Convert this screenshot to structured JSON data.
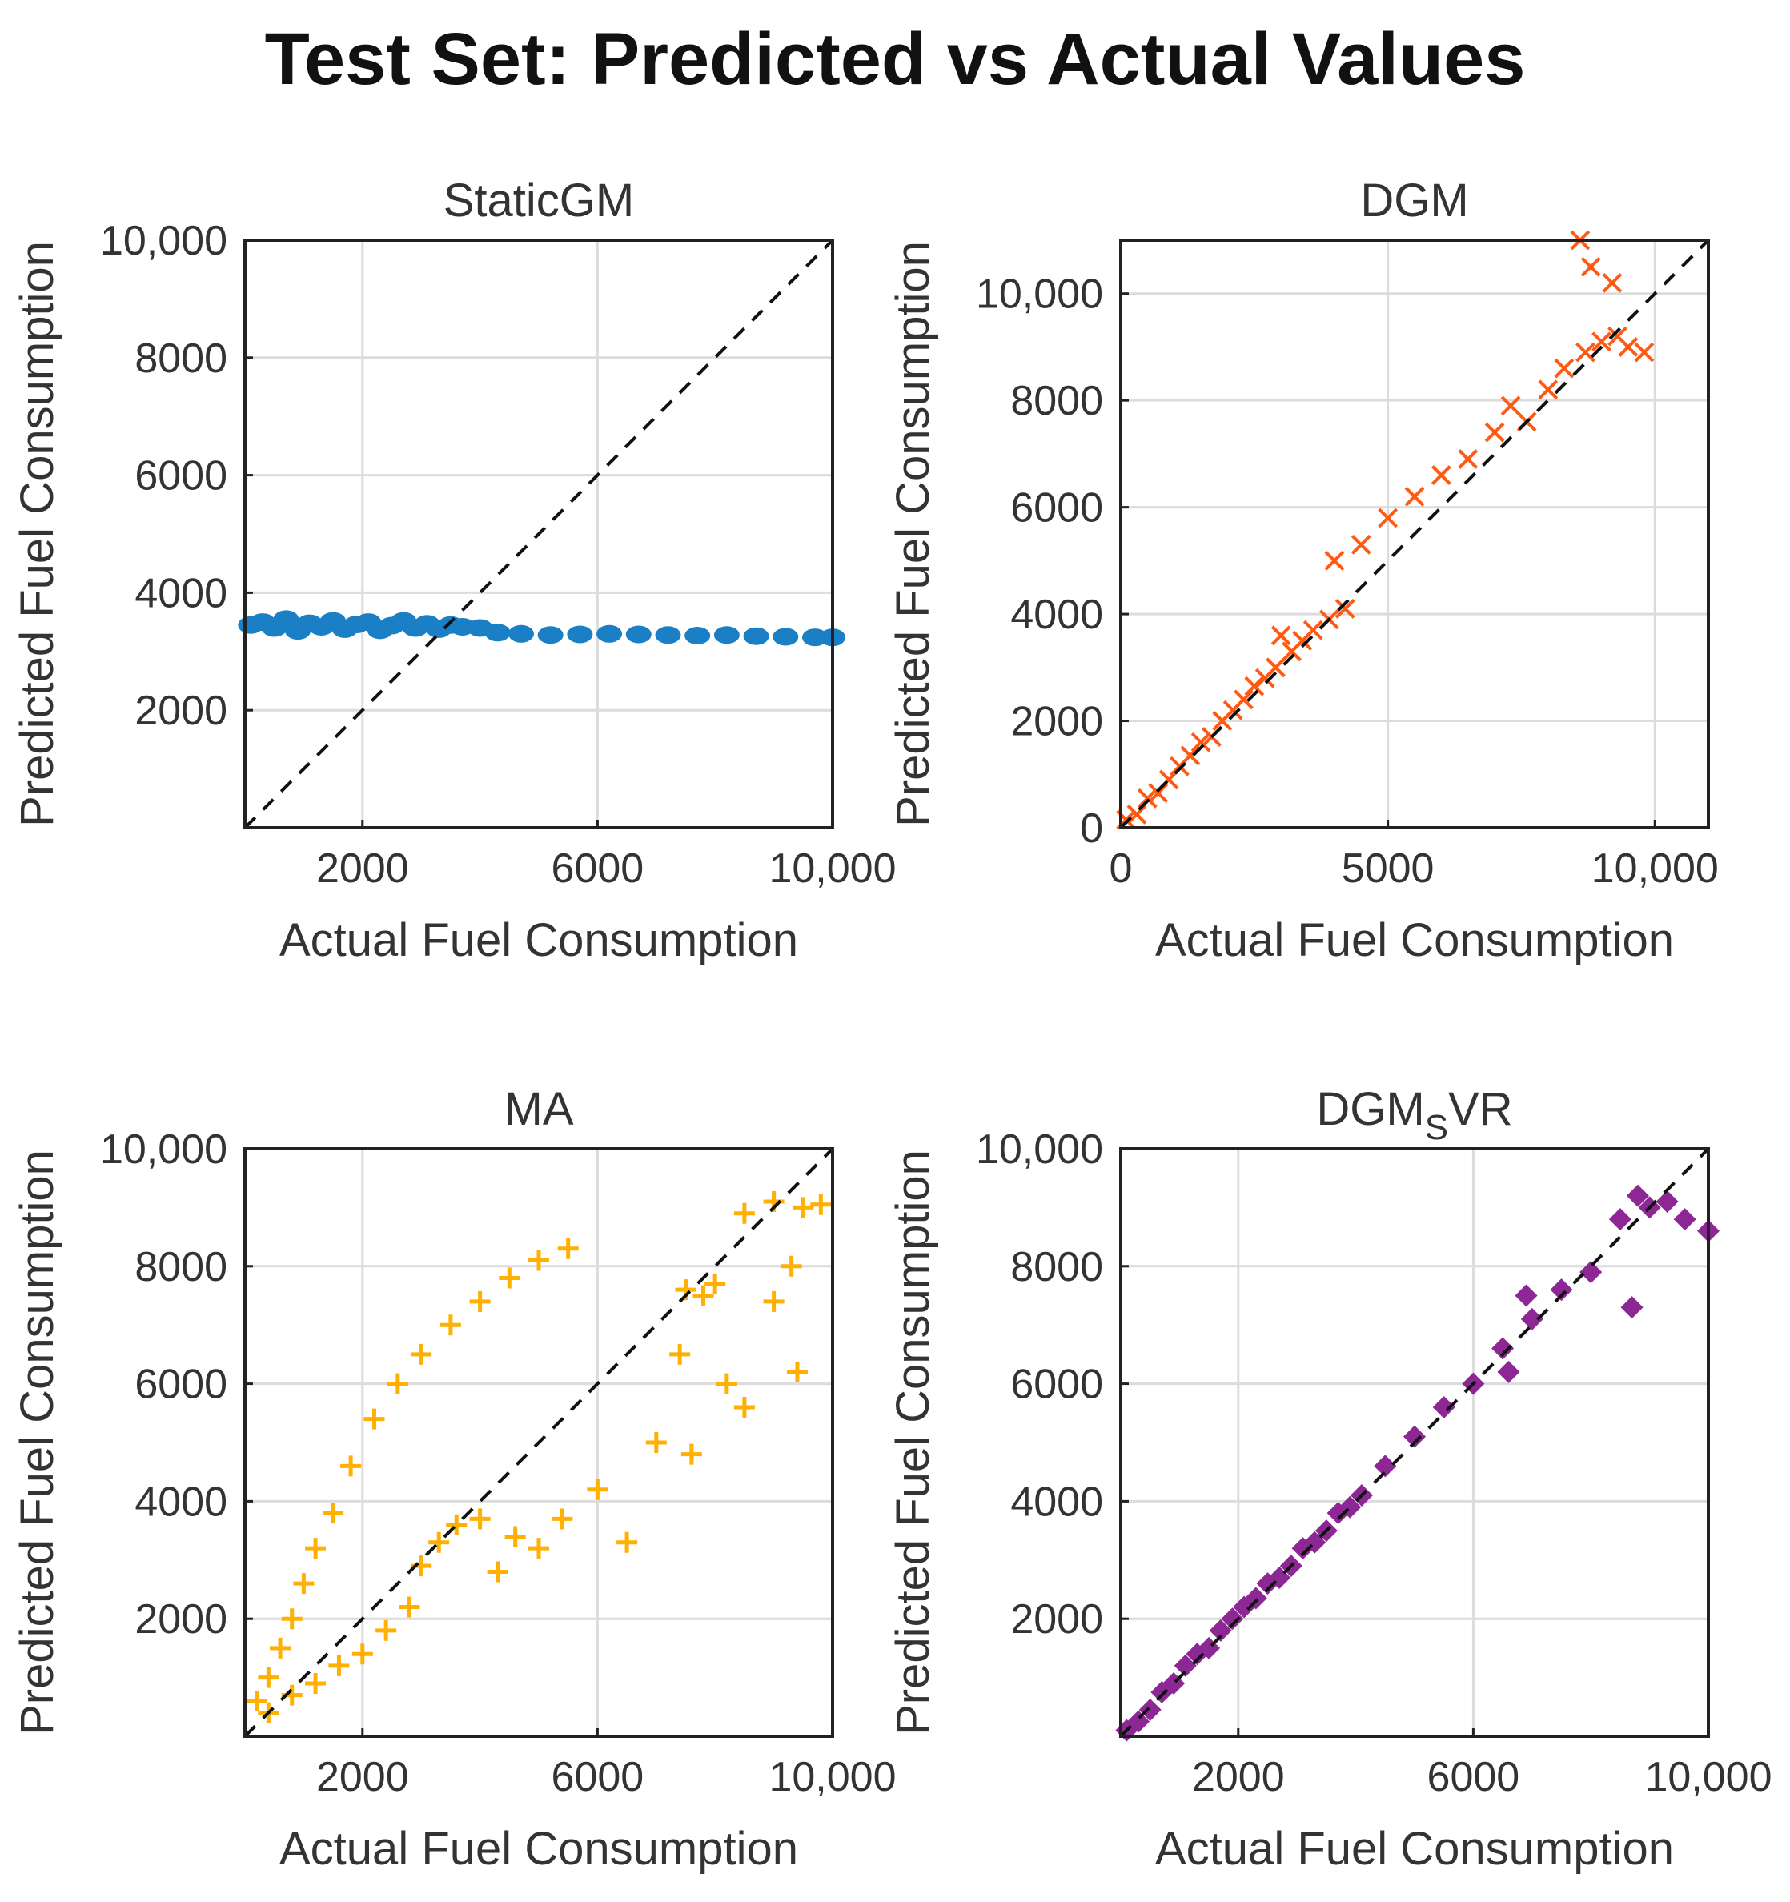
{
  "title": "Test Set: Predicted vs Actual Values",
  "colors": {
    "staticgm": "#1a7fc4",
    "dgm": "#ff5a14",
    "ma": "#ffb000",
    "dgmsvr": "#8e2796"
  },
  "chart_data": [
    {
      "type": "scatter",
      "title": "StaticGM",
      "xlabel": "Actual Fuel Consumption",
      "ylabel": "Predicted Fuel Consumption",
      "xlim": [
        0,
        10000
      ],
      "ylim": [
        0,
        10000
      ],
      "xticks": [
        2000,
        6000,
        10000
      ],
      "xtick_labels": [
        "2000",
        "6000",
        "10,000"
      ],
      "yticks": [
        2000,
        4000,
        6000,
        8000,
        10000
      ],
      "ytick_labels": [
        "2000",
        "4000",
        "6000",
        "8000",
        "10,000"
      ],
      "grid": true,
      "marker": "dot",
      "color_key": "staticgm",
      "reference_line": "y=x",
      "series": [
        {
          "points": [
            [
              100,
              3450
            ],
            [
              300,
              3500
            ],
            [
              500,
              3400
            ],
            [
              700,
              3550
            ],
            [
              900,
              3350
            ],
            [
              1100,
              3480
            ],
            [
              1300,
              3420
            ],
            [
              1500,
              3520
            ],
            [
              1700,
              3380
            ],
            [
              1900,
              3460
            ],
            [
              2100,
              3500
            ],
            [
              2300,
              3360
            ],
            [
              2500,
              3440
            ],
            [
              2700,
              3520
            ],
            [
              2900,
              3400
            ],
            [
              3100,
              3470
            ],
            [
              3300,
              3380
            ],
            [
              3500,
              3450
            ],
            [
              3700,
              3420
            ],
            [
              4000,
              3400
            ],
            [
              4300,
              3320
            ],
            [
              4700,
              3300
            ],
            [
              5200,
              3280
            ],
            [
              5700,
              3290
            ],
            [
              6200,
              3300
            ],
            [
              6700,
              3290
            ],
            [
              7200,
              3280
            ],
            [
              7700,
              3270
            ],
            [
              8200,
              3280
            ],
            [
              8700,
              3260
            ],
            [
              9200,
              3250
            ],
            [
              9700,
              3240
            ],
            [
              10000,
              3240
            ]
          ]
        }
      ]
    },
    {
      "type": "scatter",
      "title": "DGM",
      "xlabel": "Actual Fuel Consumption",
      "ylabel": "Predicted Fuel Consumption",
      "xlim": [
        0,
        11000
      ],
      "ylim": [
        0,
        11000
      ],
      "xticks": [
        0,
        5000,
        10000
      ],
      "xtick_labels": [
        "0",
        "5000",
        "10,000"
      ],
      "yticks": [
        0,
        2000,
        4000,
        6000,
        8000,
        10000
      ],
      "ytick_labels": [
        "0",
        "2000",
        "4000",
        "6000",
        "8000",
        "10,000"
      ],
      "grid": true,
      "marker": "x",
      "color_key": "dgm",
      "reference_line": "y=x",
      "series": [
        {
          "points": [
            [
              100,
              150
            ],
            [
              300,
              250
            ],
            [
              500,
              550
            ],
            [
              700,
              650
            ],
            [
              900,
              900
            ],
            [
              1100,
              1150
            ],
            [
              1300,
              1350
            ],
            [
              1500,
              1600
            ],
            [
              1700,
              1700
            ],
            [
              1900,
              2000
            ],
            [
              2100,
              2200
            ],
            [
              2300,
              2400
            ],
            [
              2500,
              2650
            ],
            [
              2700,
              2800
            ],
            [
              2900,
              3000
            ],
            [
              3000,
              3600
            ],
            [
              3200,
              3300
            ],
            [
              3400,
              3500
            ],
            [
              3600,
              3700
            ],
            [
              3900,
              3900
            ],
            [
              4200,
              4100
            ],
            [
              4000,
              5000
            ],
            [
              4500,
              5300
            ],
            [
              5000,
              5800
            ],
            [
              5500,
              6200
            ],
            [
              6000,
              6600
            ],
            [
              6500,
              6900
            ],
            [
              7000,
              7400
            ],
            [
              7300,
              7900
            ],
            [
              7600,
              7600
            ],
            [
              8000,
              8200
            ],
            [
              8300,
              8600
            ],
            [
              8700,
              8900
            ],
            [
              9000,
              9100
            ],
            [
              9300,
              9200
            ],
            [
              9500,
              9000
            ],
            [
              9800,
              8900
            ],
            [
              8800,
              10500
            ],
            [
              9200,
              10200
            ],
            [
              8600,
              11000
            ]
          ]
        }
      ]
    },
    {
      "type": "scatter",
      "title": "MA",
      "xlabel": "Actual Fuel Consumption",
      "ylabel": "Predicted Fuel Consumption",
      "xlim": [
        0,
        10000
      ],
      "ylim": [
        0,
        10000
      ],
      "xticks": [
        2000,
        6000,
        10000
      ],
      "xtick_labels": [
        "2000",
        "6000",
        "10,000"
      ],
      "yticks": [
        2000,
        4000,
        6000,
        8000,
        10000
      ],
      "ytick_labels": [
        "2000",
        "4000",
        "6000",
        "8000",
        "10,000"
      ],
      "grid": true,
      "marker": "+",
      "color_key": "ma",
      "reference_line": "y=x",
      "series": [
        {
          "points": [
            [
              200,
              600
            ],
            [
              400,
              1000
            ],
            [
              600,
              1500
            ],
            [
              800,
              2000
            ],
            [
              1000,
              2600
            ],
            [
              1200,
              3200
            ],
            [
              1500,
              3800
            ],
            [
              1800,
              4600
            ],
            [
              2200,
              5400
            ],
            [
              2600,
              6000
            ],
            [
              3000,
              6500
            ],
            [
              3500,
              7000
            ],
            [
              4000,
              7400
            ],
            [
              4500,
              7800
            ],
            [
              5000,
              8100
            ],
            [
              5500,
              8300
            ],
            [
              400,
              400
            ],
            [
              800,
              700
            ],
            [
              1200,
              900
            ],
            [
              1600,
              1200
            ],
            [
              2000,
              1400
            ],
            [
              2400,
              1800
            ],
            [
              2800,
              2200
            ],
            [
              3000,
              2900
            ],
            [
              3300,
              3300
            ],
            [
              3600,
              3600
            ],
            [
              4000,
              3700
            ],
            [
              4300,
              2800
            ],
            [
              4600,
              3400
            ],
            [
              5000,
              3200
            ],
            [
              5400,
              3700
            ],
            [
              6000,
              4200
            ],
            [
              6500,
              3300
            ],
            [
              7000,
              5000
            ],
            [
              7400,
              6500
            ],
            [
              7800,
              7500
            ],
            [
              7500,
              7600
            ],
            [
              8000,
              7700
            ],
            [
              8500,
              8900
            ],
            [
              9000,
              9100
            ],
            [
              9500,
              9000
            ],
            [
              9800,
              9050
            ],
            [
              7600,
              4800
            ],
            [
              8200,
              6000
            ],
            [
              8500,
              5600
            ],
            [
              9000,
              7400
            ],
            [
              9300,
              8000
            ],
            [
              9400,
              6200
            ]
          ]
        }
      ]
    },
    {
      "type": "scatter",
      "title": "DGM",
      "title_subscript": "S",
      "title_suffix": "VR",
      "xlabel": "Actual Fuel Consumption",
      "ylabel": "Predicted Fuel Consumption",
      "xlim": [
        0,
        10000
      ],
      "ylim": [
        0,
        10000
      ],
      "xticks": [
        2000,
        6000,
        10000
      ],
      "xtick_labels": [
        "2000",
        "6000",
        "10,000"
      ],
      "yticks": [
        2000,
        4000,
        6000,
        8000,
        10000
      ],
      "ytick_labels": [
        "2000",
        "4000",
        "6000",
        "8000",
        "10,000"
      ],
      "grid": true,
      "marker": "diamond",
      "color_key": "dgmsvr",
      "reference_line": "y=x",
      "series": [
        {
          "points": [
            [
              100,
              100
            ],
            [
              300,
              250
            ],
            [
              500,
              450
            ],
            [
              700,
              750
            ],
            [
              900,
              900
            ],
            [
              1100,
              1200
            ],
            [
              1300,
              1400
            ],
            [
              1500,
              1500
            ],
            [
              1700,
              1800
            ],
            [
              1900,
              2000
            ],
            [
              2100,
              2200
            ],
            [
              2300,
              2350
            ],
            [
              2500,
              2600
            ],
            [
              2700,
              2700
            ],
            [
              2900,
              2900
            ],
            [
              3100,
              3200
            ],
            [
              3300,
              3300
            ],
            [
              3500,
              3500
            ],
            [
              3700,
              3800
            ],
            [
              3900,
              3900
            ],
            [
              4100,
              4100
            ],
            [
              4500,
              4600
            ],
            [
              5000,
              5100
            ],
            [
              5500,
              5600
            ],
            [
              6000,
              6000
            ],
            [
              6500,
              6600
            ],
            [
              7000,
              7100
            ],
            [
              7500,
              7600
            ],
            [
              8000,
              7900
            ],
            [
              8500,
              8800
            ],
            [
              8800,
              9200
            ],
            [
              9000,
              9000
            ],
            [
              9300,
              9100
            ],
            [
              9600,
              8800
            ],
            [
              10000,
              8600
            ],
            [
              6600,
              6200
            ],
            [
              6900,
              7500
            ],
            [
              8700,
              7300
            ]
          ]
        }
      ]
    }
  ]
}
